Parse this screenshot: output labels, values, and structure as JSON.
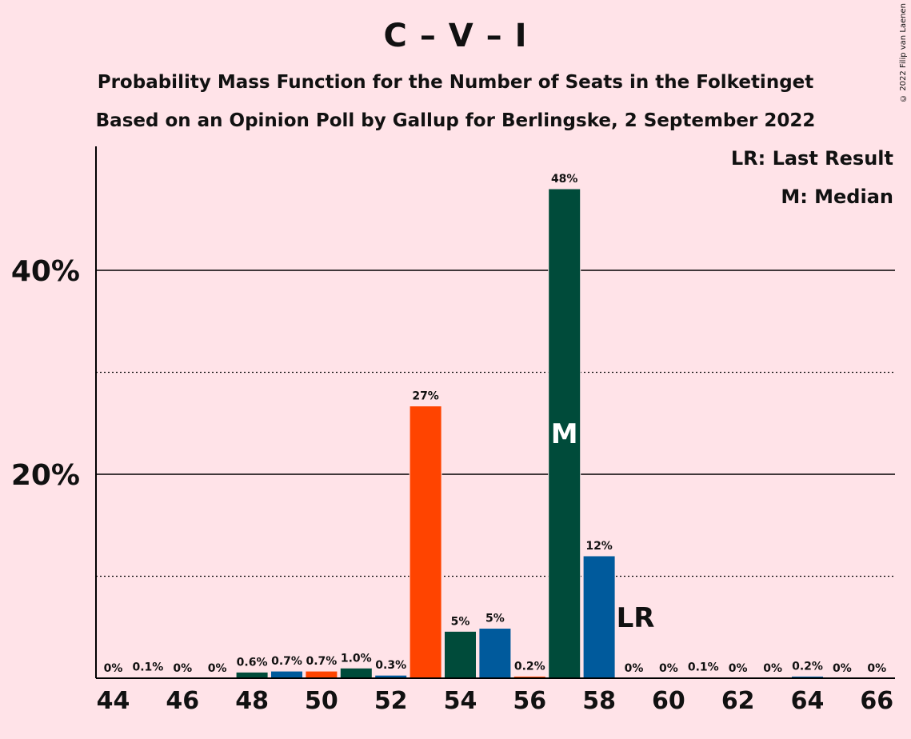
{
  "page": {
    "title": "C – V – I",
    "subtitle_line1": "Probability Mass Function for the Number of Seats in the Folketinget",
    "subtitle_line2": "Based on an Opinion Poll by Gallup for Berlingske, 2 September 2022",
    "copyright": "© 2022 Filip van Laenen",
    "legend_lr": "LR: Last Result",
    "legend_m": "M: Median"
  },
  "chart_data": {
    "type": "bar",
    "x": [
      44,
      45,
      46,
      47,
      48,
      49,
      50,
      51,
      52,
      53,
      54,
      55,
      56,
      57,
      58,
      59,
      60,
      61,
      62,
      63,
      64,
      65,
      66
    ],
    "values": [
      0,
      0.1,
      0,
      0,
      0.6,
      0.7,
      0.7,
      1.0,
      0.3,
      26.7,
      4.6,
      4.9,
      0.2,
      48.0,
      12.0,
      0,
      0,
      0.1,
      0,
      0,
      0.2,
      0,
      0
    ],
    "labels": [
      "0%",
      "0.1%",
      "0%",
      "0%",
      "0.6%",
      "0.7%",
      "0.7%",
      "1.0%",
      "0.3%",
      "27%",
      "5%",
      "5%",
      "0.2%",
      "48%",
      "12%",
      "0%",
      "0%",
      "0.1%",
      "0%",
      "0%",
      "0.2%",
      "0%",
      "0%"
    ],
    "colors": [
      "#004B3A",
      "#005A9C",
      "#004B3A",
      "#005A9C",
      "#004B3A",
      "#005A9C",
      "#FF4400",
      "#004B3A",
      "#005A9C",
      "#FF4400",
      "#004B3A",
      "#005A9C",
      "#FF4400",
      "#004B3A",
      "#005A9C",
      "#FF4400",
      "#004B3A",
      "#005A9C",
      "#FF4400",
      "#004B3A",
      "#005A9C",
      "#FF4400",
      "#004B3A"
    ],
    "x_ticks": [
      44,
      46,
      48,
      50,
      52,
      54,
      56,
      58,
      60,
      62,
      64,
      66
    ],
    "y_ticks": [
      {
        "value": 20,
        "label": "20%"
      },
      {
        "value": 40,
        "label": "40%"
      }
    ],
    "y_minor_gridlines": [
      10,
      30
    ],
    "ylim": [
      0,
      52
    ],
    "median_seat": 57,
    "median_label": "M",
    "last_result_seat": 59,
    "last_result_label": "LR"
  }
}
